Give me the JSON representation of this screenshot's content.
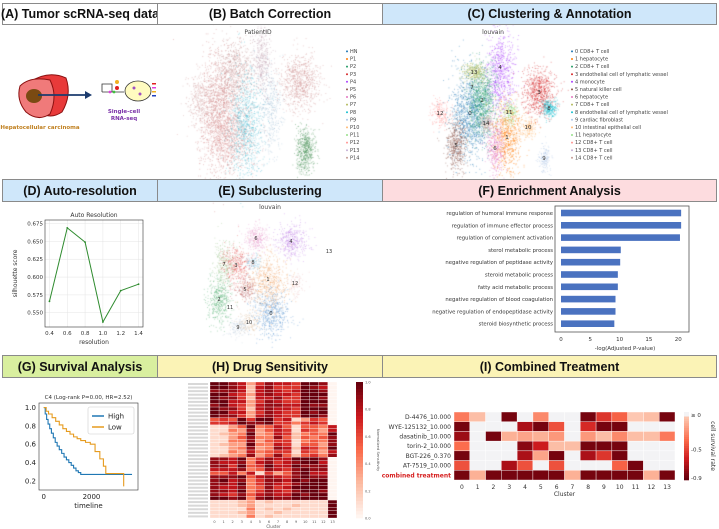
{
  "panels": {
    "A": {
      "title": "(A) Tumor scRNA-seq data",
      "color": "#ffffff",
      "tissue_label": "Hepatocellular carcinoma",
      "method_label_1": "Single-cell",
      "method_label_2": "RNA-seq"
    },
    "B": {
      "title": "(B) Batch Correction",
      "color": "#ffffff",
      "plot_title": "PatientID",
      "legend": [
        "HN",
        "P1",
        "P2",
        "P3",
        "P4",
        "P5",
        "P6",
        "P7",
        "P8",
        "P9",
        "P10",
        "P11",
        "P12",
        "P13",
        "P14"
      ],
      "legend_colors": [
        "#1f77b4",
        "#ff7f0e",
        "#279e68",
        "#d62728",
        "#aa40fc",
        "#8c564b",
        "#e377c2",
        "#b5bd61",
        "#17becf",
        "#aec7e8",
        "#ffbb78",
        "#98df8a",
        "#ff9896",
        "#c5b0d5",
        "#c49c94"
      ]
    },
    "C": {
      "title": "(C) Clustering & Annotation",
      "color": "#cfe7fa",
      "plot_title": "louvain",
      "legend": [
        "0 CD8+ T cell",
        "1 hepatocyte",
        "2 CD8+ T cell",
        "3 endothelial cell of lymphatic vessel",
        "4 monocyte",
        "5 natural killer cell",
        "6 hepatocyte",
        "7 CD8+ T cell",
        "8 endothelial cell of lymphatic vessel",
        "9 cardiac fibroblast",
        "10 intestinal epithelial cell",
        "11 hepatocyte",
        "12 CD8+ T cell",
        "13 CD8+ T cell",
        "14 CD8+ T cell"
      ],
      "cluster_labels": [
        "0",
        "1",
        "2",
        "3",
        "4",
        "5",
        "6",
        "7",
        "8",
        "9",
        "10",
        "11",
        "12",
        "13",
        "14"
      ],
      "legend_colors": [
        "#1f77b4",
        "#ff7f0e",
        "#279e68",
        "#d62728",
        "#aa40fc",
        "#8c564b",
        "#e377c2",
        "#b5bd61",
        "#17becf",
        "#aec7e8",
        "#ffbb78",
        "#98df8a",
        "#ff9896",
        "#c5b0d5",
        "#c49c94"
      ]
    },
    "D": {
      "title": "(D) Auto-resolution",
      "color": "#cfe7fa"
    },
    "E": {
      "title": "(E) Subclustering",
      "color": "#cfe7fa",
      "plot_title": "louvain",
      "cluster_labels": [
        "0",
        "1",
        "2",
        "3",
        "4",
        "5",
        "6",
        "7",
        "8",
        "9",
        "10",
        "11",
        "12",
        "13"
      ]
    },
    "F": {
      "title": "(F) Enrichment Analysis",
      "color": "#fddcdf"
    },
    "G": {
      "title": "(G) Survival Analysis",
      "color": "#d9ef9f"
    },
    "H": {
      "title": "(H) Drug Sensitivity",
      "color": "#fbf3b6"
    },
    "I": {
      "title": "(I) Combined Treatment",
      "color": "#fbf3b6"
    }
  },
  "chart_data": [
    {
      "id": "D",
      "type": "line",
      "title": "Auto Resolution",
      "xlabel": "resolution",
      "ylabel": "silhouette score",
      "x": [
        0.4,
        0.6,
        0.8,
        1.0,
        1.2,
        1.4
      ],
      "y": [
        0.566,
        0.669,
        0.649,
        0.537,
        0.581,
        0.59
      ],
      "xticks": [
        "0.4",
        "0.6",
        "0.8",
        "1.0",
        "1.2",
        "1.4"
      ],
      "yticks": [
        "0.550",
        "0.575",
        "0.600",
        "0.625",
        "0.650",
        "0.675"
      ],
      "xlim": [
        0.35,
        1.45
      ],
      "ylim": [
        0.53,
        0.68
      ],
      "grid": true,
      "color": "#2e8b2e"
    },
    {
      "id": "F",
      "type": "bar",
      "orientation": "horizontal",
      "xlabel": "-log(Adjusted P-value)",
      "categories": [
        "regulation of humoral immune response",
        "regulation of immune effector process",
        "regulation of complement activation",
        "sterol metabolic process",
        "negative regulation of peptidase activity",
        "steroid metabolic process",
        "fatty acid metabolic process",
        "negative regulation of blood coagulation",
        "negative regulation of endopeptidase activity",
        "steroid biosynthetic process"
      ],
      "values": [
        20.5,
        20.5,
        20.3,
        10.2,
        10.1,
        9.7,
        9.7,
        9.3,
        9.3,
        9.1
      ],
      "xticks": [
        "0",
        "5",
        "10",
        "15",
        "20"
      ],
      "xlim": [
        0,
        21.5
      ],
      "color": "#4a72c0"
    },
    {
      "id": "G",
      "type": "line",
      "title": "C4 (Log-rank P=0.00, HR=2.52)",
      "xlabel": "timeline",
      "xticks": [
        "0",
        "2000"
      ],
      "yticks": [
        "0.2",
        "0.4",
        "0.6",
        "0.8",
        "1.0"
      ],
      "xlim": [
        -200,
        3950
      ],
      "ylim": [
        0.1,
        1.05
      ],
      "legend_position": "top-right",
      "series": [
        {
          "name": "High",
          "color": "#1f77b4",
          "x": [
            0,
            60,
            120,
            180,
            250,
            320,
            400,
            480,
            560,
            650,
            750,
            850,
            950,
            1050,
            1150,
            1250,
            1350,
            1450,
            1550,
            3700
          ],
          "y": [
            1.0,
            0.93,
            0.87,
            0.82,
            0.77,
            0.72,
            0.67,
            0.62,
            0.58,
            0.54,
            0.5,
            0.46,
            0.43,
            0.4,
            0.37,
            0.34,
            0.31,
            0.29,
            0.27,
            0.27
          ]
        },
        {
          "name": "Low",
          "color": "#e69b1e",
          "x": [
            0,
            100,
            200,
            350,
            500,
            650,
            800,
            950,
            1100,
            1250,
            1400,
            1550,
            1750,
            1950,
            2150,
            2350,
            2500,
            2600,
            3300,
            3350
          ],
          "y": [
            1.0,
            0.96,
            0.93,
            0.89,
            0.85,
            0.81,
            0.77,
            0.74,
            0.71,
            0.68,
            0.66,
            0.64,
            0.62,
            0.6,
            0.52,
            0.44,
            0.36,
            0.28,
            0.28,
            0.14
          ]
        }
      ]
    },
    {
      "id": "H",
      "type": "heatmap",
      "xlabel": "Cluster",
      "colorbar_label": "Normalized Sensitivity",
      "columns": [
        "0",
        "1",
        "2",
        "3",
        "4",
        "5",
        "6",
        "7",
        "8",
        "9",
        "10",
        "11",
        "12",
        "13"
      ],
      "colorbar_ticks": [
        "1.0",
        "0.8",
        "0.6",
        "0.4",
        "0.2",
        "0.0"
      ],
      "value_scale": "digit/9",
      "rows": [
        "99873687769980",
        "99872786669870",
        "88872787679980",
        "99763787769990",
        "98862778669980",
        "99773687669990",
        "89763788779880",
        "98862787769990",
        "99773687669890",
        "98863787669980",
        "56596996713650",
        "66798896646760",
        "11359457515547",
        "11438357616537",
        "12349347624549",
        "11358448525458",
        "11448356614548",
        "12339447615538",
        "11348348727649",
        "11437456616537",
        "12348358525648",
        "88794687799980",
        "87784786789970",
        "88695697798880",
        "77784587689880",
        "55747163589770",
        "88895787689880",
        "89784688798990",
        "88794687689990",
        "87784586799990",
        "88794687689980",
        "87685787798990",
        "99894898899990",
        "11123121111119",
        "11123111121119",
        "11114121211119",
        "11123112111119",
        "11114121111119"
      ]
    },
    {
      "id": "I",
      "type": "heatmap",
      "xlabel": "Cluster",
      "colorbar_label": "cell survival rate",
      "columns": [
        "0",
        "1",
        "2",
        "3",
        "4",
        "5",
        "6",
        "7",
        "8",
        "9",
        "10",
        "11",
        "12",
        "13"
      ],
      "colorbar_ticks": [
        "≥ 0",
        "-0.5",
        "-0.9"
      ],
      "highlight_row_color": "#d62020",
      "rows": [
        {
          "label": "D-4476_10.000",
          "values": [
            -0.32,
            -0.09,
            0,
            -0.86,
            0,
            -0.27,
            0,
            0,
            -0.86,
            -0.54,
            -0.4,
            -0.05,
            -0.09,
            -0.86
          ]
        },
        {
          "label": "WYE-125132_10.000",
          "values": [
            -0.86,
            0,
            0,
            0,
            -0.72,
            -0.86,
            -0.45,
            0,
            -0.58,
            -0.86,
            -0.86,
            0,
            0,
            0
          ]
        },
        {
          "label": "dasatinib_10.000",
          "values": [
            -0.76,
            0,
            -0.86,
            -0.14,
            -0.18,
            -0.14,
            -0.22,
            0,
            -0.22,
            -0.09,
            -0.27,
            -0.09,
            -0.09,
            -0.32
          ]
        },
        {
          "label": "torin-2_10.000",
          "values": [
            -0.36,
            0,
            0,
            0,
            -0.81,
            -0.63,
            -0.09,
            -0.09,
            -0.86,
            -0.86,
            -0.86,
            0,
            0,
            0
          ]
        },
        {
          "label": "BGT-226_0.370",
          "values": [
            -0.86,
            0,
            0,
            0,
            -0.72,
            -0.18,
            -0.86,
            0,
            -0.72,
            -0.54,
            -0.86,
            0,
            0,
            0
          ]
        },
        {
          "label": "AT-7519_10.000",
          "values": [
            -0.45,
            0,
            0,
            -0.72,
            -0.45,
            0,
            -0.45,
            0,
            0,
            0,
            -0.4,
            -0.86,
            0,
            0
          ]
        },
        {
          "label": "combined treatment",
          "values": [
            -0.86,
            -0.14,
            -0.86,
            -0.86,
            -0.86,
            -0.86,
            -0.86,
            -0.14,
            -0.86,
            -0.86,
            -0.86,
            -0.86,
            -0.14,
            -0.86
          ],
          "highlight": true
        }
      ]
    }
  ]
}
